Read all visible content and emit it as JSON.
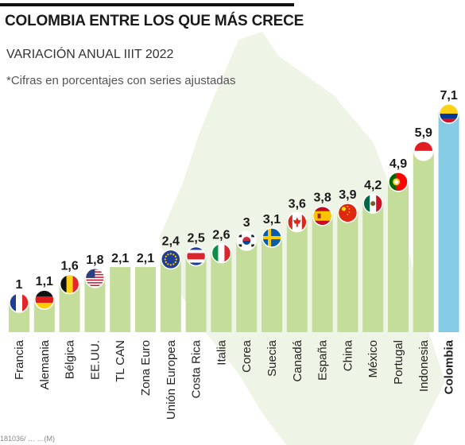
{
  "header": {
    "title": "COLOMBIA ENTRE LOS QUE MÁS CRECE",
    "subtitle": "VARIACIÓN ANUAL IIIT 2022",
    "note": "*Cifras en porcentajes con series ajustadas"
  },
  "footer": {
    "credit": "181036/ … …(M)"
  },
  "colors": {
    "bar": "#c5dd9a",
    "highlight_bar": "#86cbe6",
    "map": "#e8f1dc",
    "text": "#222222"
  },
  "chart_data": {
    "type": "bar",
    "title": "COLOMBIA ENTRE LOS QUE MÁS CRECE",
    "subtitle": "VARIACIÓN ANUAL IIIT 2022",
    "categories": [
      "Francia",
      "Alemania",
      "Bélgica",
      "EE.UU.",
      "TL CAN",
      "Zona Euro",
      "Unión Europea",
      "Costa Rica",
      "Italia",
      "Corea",
      "Suecia",
      "Canadá",
      "España",
      "China",
      "México",
      "Portugal",
      "Indonesia",
      "Colombia"
    ],
    "values": [
      1,
      1.1,
      1.6,
      1.8,
      2.1,
      2.1,
      2.4,
      2.5,
      2.6,
      3,
      3.1,
      3.6,
      3.8,
      3.9,
      4.2,
      4.9,
      5.9,
      7.1
    ],
    "value_labels": [
      "1",
      "1,1",
      "1,6",
      "1,8",
      "2,1",
      "2,1",
      "2,4",
      "2,5",
      "2,6",
      "3",
      "3,1",
      "3,6",
      "3,8",
      "3,9",
      "4,2",
      "4,9",
      "5,9",
      "7,1"
    ],
    "highlight": "Colombia",
    "flags": [
      "france-flag-icon",
      "germany-flag-icon",
      "belgium-flag-icon",
      "usa-flag-icon",
      "",
      "",
      "eu-flag-icon",
      "costa-rica-flag-icon",
      "italy-flag-icon",
      "korea-flag-icon",
      "sweden-flag-icon",
      "canada-flag-icon",
      "spain-flag-icon",
      "china-flag-icon",
      "mexico-flag-icon",
      "portugal-flag-icon",
      "indonesia-flag-icon",
      "colombia-flag-icon"
    ],
    "ylim": [
      0,
      7.1
    ],
    "xlabel": "",
    "ylabel": "",
    "grid": false,
    "legend": "none"
  }
}
